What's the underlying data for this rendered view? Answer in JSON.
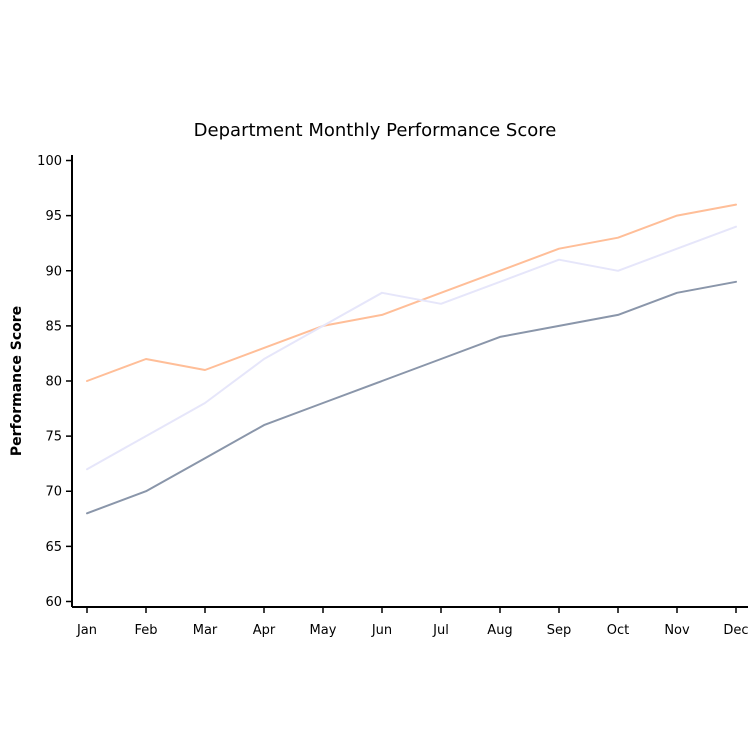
{
  "chart_data": {
    "type": "line",
    "title": "Department Monthly Performance Score",
    "xlabel": "",
    "ylabel": "Performance Score",
    "categories": [
      "Jan",
      "Feb",
      "Mar",
      "Apr",
      "May",
      "Jun",
      "Jul",
      "Aug",
      "Sep",
      "Oct",
      "Nov",
      "Dec"
    ],
    "ylim": [
      59.5,
      100.5
    ],
    "yticks": [
      60,
      65,
      70,
      75,
      80,
      85,
      90,
      95,
      100
    ],
    "grid": false,
    "series": [
      {
        "color": "#ffbe98",
        "values": [
          80,
          82,
          81,
          83,
          85,
          86,
          88,
          90,
          92,
          93,
          95,
          96
        ]
      },
      {
        "color": "#e6e6fa",
        "values": [
          72,
          75,
          78,
          82,
          85,
          88,
          87,
          89,
          91,
          90,
          92,
          94
        ]
      },
      {
        "color": "#8a96aa",
        "values": [
          68,
          70,
          73,
          76,
          78,
          80,
          82,
          84,
          85,
          86,
          88,
          89
        ]
      }
    ]
  }
}
